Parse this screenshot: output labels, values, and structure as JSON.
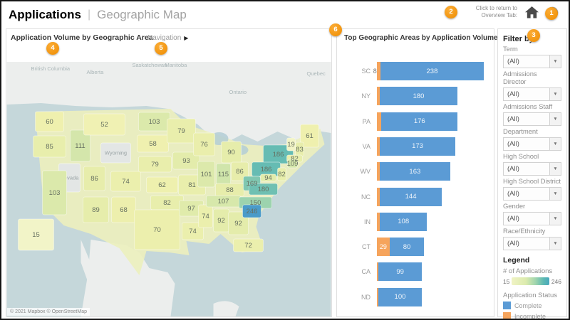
{
  "header": {
    "title": "Applications",
    "separator": "|",
    "subtitle": "Geographic Map",
    "return_hint_line1": "Click to return to",
    "return_hint_line2": "Overview Tab:"
  },
  "badges": [
    {
      "id": "b1",
      "number": "1"
    },
    {
      "id": "b2",
      "number": "2"
    },
    {
      "id": "b3",
      "number": "3"
    },
    {
      "id": "b4",
      "number": "4"
    },
    {
      "id": "b5",
      "number": "5"
    },
    {
      "id": "b6",
      "number": "6"
    }
  ],
  "map_panel": {
    "navigation_label": "Navigation",
    "navigation_arrow": "▶",
    "attribution": "© 2021 Mapbox © OpenStreetMap",
    "background_labels": [
      "British Columbia",
      "Alberta",
      "Saskatchewan",
      "Manitoba",
      "Ontario",
      "Quebec"
    ]
  },
  "filters": {
    "title": "Filter by:",
    "items": [
      {
        "label": "Term",
        "value": "(All)"
      },
      {
        "label": "Admissions Director",
        "value": "(All)"
      },
      {
        "label": "Admissions Staff",
        "value": "(All)"
      },
      {
        "label": "Department",
        "value": "(All)"
      },
      {
        "label": "High School",
        "value": "(All)"
      },
      {
        "label": "High School District",
        "value": "(All)"
      },
      {
        "label": "Gender",
        "value": "(All)"
      },
      {
        "label": "Race/Ethnicity",
        "value": "(All)"
      }
    ]
  },
  "legend": {
    "title": "Legend",
    "applications_label": "# of Applications",
    "min": "15",
    "max": "246",
    "status_title": "Application Status",
    "statuses": [
      {
        "label": "Complete",
        "color": "#5b9bd5"
      },
      {
        "label": "Incomplete",
        "color": "#f6a45c"
      }
    ]
  },
  "colors": {
    "accent_orange": "#ee8c00",
    "bar_complete": "#5b9bd5",
    "bar_incomplete": "#f6a45c",
    "choropleth_low": "#f2f4c8",
    "choropleth_high": "#4a9bc9",
    "water": "#c5d7da",
    "foreign_land": "#eceeed"
  },
  "chart_data": [
    {
      "type": "heatmap",
      "subtype": "choropleth-map",
      "title": "Application Volume by Geographic Area",
      "value_label": "# of Applications",
      "range": [
        15,
        246
      ],
      "states": [
        {
          "abbr": "WA",
          "value": 60
        },
        {
          "abbr": "OR",
          "value": 85
        },
        {
          "abbr": "CA",
          "value": 103
        },
        {
          "abbr": "AK",
          "value": 15
        },
        {
          "abbr": "ID",
          "value": 111
        },
        {
          "abbr": "UT",
          "value": 86
        },
        {
          "abbr": "AZ",
          "value": 89
        },
        {
          "abbr": "MT",
          "value": 52
        },
        {
          "abbr": "CO",
          "value": 74
        },
        {
          "abbr": "NM",
          "value": 68
        },
        {
          "abbr": "ND",
          "value": 103
        },
        {
          "abbr": "SD",
          "value": 58
        },
        {
          "abbr": "NE",
          "value": 79
        },
        {
          "abbr": "KS",
          "value": 62
        },
        {
          "abbr": "OK",
          "value": 82
        },
        {
          "abbr": "TX",
          "value": 70
        },
        {
          "abbr": "MN",
          "value": 79
        },
        {
          "abbr": "IA",
          "value": 93
        },
        {
          "abbr": "MO",
          "value": 81
        },
        {
          "abbr": "AR",
          "value": 97
        },
        {
          "abbr": "LA",
          "value": 74
        },
        {
          "abbr": "WI",
          "value": 76
        },
        {
          "abbr": "IL",
          "value": 101
        },
        {
          "abbr": "MS",
          "value": 74
        },
        {
          "abbr": "MI",
          "value": 90
        },
        {
          "abbr": "IN",
          "value": 115
        },
        {
          "abbr": "KY",
          "value": 88
        },
        {
          "abbr": "TN",
          "value": 107
        },
        {
          "abbr": "AL",
          "value": 92
        },
        {
          "abbr": "OH",
          "value": 86
        },
        {
          "abbr": "GA",
          "value": 92
        },
        {
          "abbr": "FL",
          "value": 72
        },
        {
          "abbr": "NY",
          "value": 186
        },
        {
          "abbr": "PA",
          "value": 186
        },
        {
          "abbr": "WV",
          "value": 169
        },
        {
          "abbr": "VA",
          "value": 180
        },
        {
          "abbr": "NC",
          "value": 150
        },
        {
          "abbr": "SC",
          "value": 246
        },
        {
          "abbr": "ME",
          "value": 61
        },
        {
          "abbr": "VT",
          "value": 19
        },
        {
          "abbr": "NH",
          "value": 83
        },
        {
          "abbr": "MA",
          "value": 82
        },
        {
          "abbr": "CT",
          "value": 109
        },
        {
          "abbr": "NJ",
          "value": 82
        },
        {
          "abbr": "MD",
          "value": 94
        }
      ],
      "no_data_states": [
        "Nevada",
        "Wyoming"
      ]
    },
    {
      "type": "bar",
      "orientation": "horizontal",
      "stacked": true,
      "title": "Top Geographic Areas by Application Volume",
      "categories": [
        "SC",
        "NY",
        "PA",
        "VA",
        "WV",
        "NC",
        "IN",
        "CT",
        "CA",
        "ND"
      ],
      "series": [
        {
          "name": "Incomplete",
          "color": "#f6a45c",
          "values": [
            8,
            6,
            10,
            7,
            6,
            6,
            7,
            29,
            4,
            3
          ]
        },
        {
          "name": "Complete",
          "color": "#5b9bd5",
          "values": [
            238,
            180,
            176,
            173,
            163,
            144,
            108,
            80,
            99,
            100
          ]
        }
      ],
      "complete_value_labels": [
        "238",
        "180",
        "176",
        "173",
        "163",
        "144",
        "108",
        "80",
        "99",
        "100"
      ],
      "incomplete_visible_labels": {
        "SC": "8",
        "CT": "29"
      },
      "xlim": [
        0,
        246
      ]
    }
  ]
}
